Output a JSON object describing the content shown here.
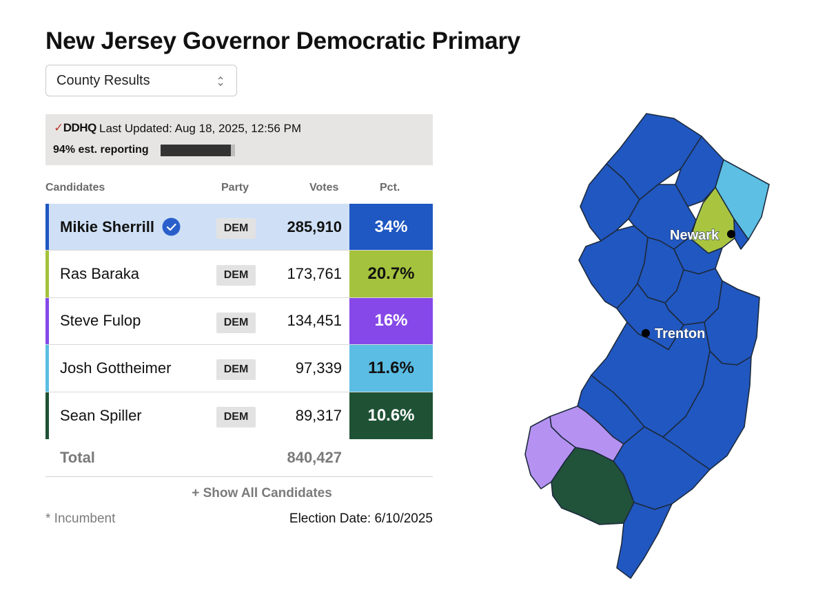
{
  "title": "New Jersey Governor Democratic Primary",
  "view_select": {
    "value": "County Results"
  },
  "banner": {
    "logo": "DDHQ",
    "last_updated": "Last Updated: Aug 18, 2025, 12:56 PM",
    "reporting": "94% est. reporting",
    "reporting_fraction": 0.94
  },
  "table": {
    "headers": {
      "candidates": "Candidates",
      "party": "Party",
      "votes": "Votes",
      "pct": "Pct."
    },
    "rows": [
      {
        "name": "Mikie Sherrill",
        "party": "DEM",
        "votes": "285,910",
        "pct": "34%",
        "color": "#1f57c3",
        "winner": true
      },
      {
        "name": "Ras Baraka",
        "party": "DEM",
        "votes": "173,761",
        "pct": "20.7%",
        "color": "#a4c23d",
        "winner": false
      },
      {
        "name": "Steve Fulop",
        "party": "DEM",
        "votes": "134,451",
        "pct": "16%",
        "color": "#8648e8",
        "winner": false
      },
      {
        "name": "Josh Gottheimer",
        "party": "DEM",
        "votes": "97,339",
        "pct": "11.6%",
        "color": "#5bbde3",
        "winner": false
      },
      {
        "name": "Sean Spiller",
        "party": "DEM",
        "votes": "89,317",
        "pct": "10.6%",
        "color": "#1f5235",
        "winner": false
      }
    ],
    "total_label": "Total",
    "total_votes": "840,427"
  },
  "show_all_label": "+ Show All Candidates",
  "incumbent_note": "* Incumbent",
  "election_date": "Election Date: 6/10/2025",
  "map": {
    "cities": [
      {
        "name": "Newark"
      },
      {
        "name": "Trenton"
      }
    ],
    "legend_colors": {
      "sherrill": "#2157c0",
      "baraka": "#a9c53f",
      "gottheimer": "#5cbfe3",
      "fulop_light": "#b592f2",
      "spiller": "#21523a"
    }
  }
}
